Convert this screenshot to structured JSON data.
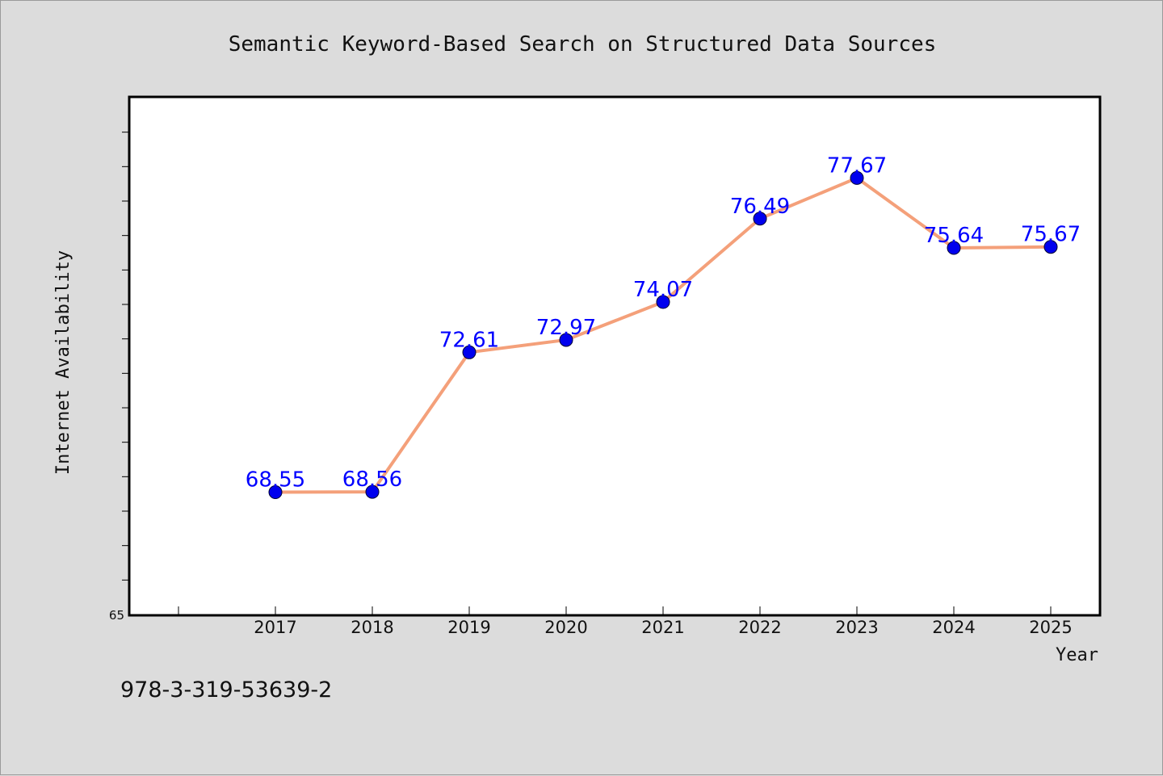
{
  "chart_data": {
    "type": "line",
    "title": "Semantic Keyword-Based Search on Structured Data Sources",
    "xlabel": "Year",
    "ylabel": "Internet Availability",
    "x": [
      "2017",
      "2018",
      "2019",
      "2020",
      "2021",
      "2022",
      "2023",
      "2024",
      "2025"
    ],
    "series": [
      {
        "values": [
          68.55,
          68.56,
          72.61,
          72.97,
          74.07,
          76.49,
          77.67,
          75.64,
          75.67
        ],
        "labels": [
          "68.55",
          "68.56",
          "72.61",
          "72.97",
          "74.07",
          "76.49",
          "77.67",
          "75.64",
          "75.67"
        ],
        "line_color": "#f4a07a",
        "marker_color": "#0000ee",
        "label_color": "#0000ff"
      }
    ],
    "ylim": [
      65,
      80
    ],
    "y_tick_labels": [
      "65"
    ],
    "grid": false,
    "legend": "none"
  },
  "annotation": {
    "isbn": "978-3-319-53639-2"
  },
  "colors": {
    "background": "#dcdcdc",
    "plot_area": "#ffffff",
    "axis": "#000000"
  }
}
